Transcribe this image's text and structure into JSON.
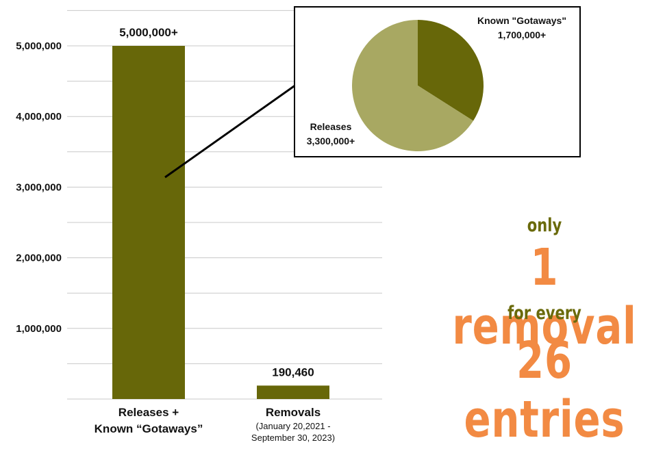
{
  "colors": {
    "bar": "#676709",
    "pie_known_gotaways": "#676709",
    "pie_releases": "#a8a862",
    "grid": "#c8c8c8",
    "callout_olive": "#6a6a0b",
    "callout_orange": "#f28a43"
  },
  "chart_data": [
    {
      "type": "bar",
      "categories": [
        "Releases + Known “Gotaways”",
        "Removals"
      ],
      "category_lines": [
        [
          "Releases +",
          "Known “Gotaways”"
        ],
        [
          "Removals",
          "(January 20,2021 -",
          "September 30, 2023)"
        ]
      ],
      "values": [
        5000000,
        190460
      ],
      "data_labels": [
        "5,000,000+",
        "190,460"
      ],
      "ylim": [
        0,
        5500000
      ],
      "yticks": [
        1000000,
        2000000,
        3000000,
        4000000,
        5000000
      ],
      "ytick_labels": [
        "1,000,000",
        "2,000,000",
        "3,000,000",
        "4,000,000",
        "5,000,000"
      ],
      "grid_step": 500000,
      "grid": true
    },
    {
      "type": "pie",
      "breakdown_of": "Releases + Known “Gotaways”",
      "slices": [
        {
          "label": "Known \"Gotaways\"",
          "value": 1700000,
          "value_label": "1,700,000+"
        },
        {
          "label": "Releases",
          "value": 3300000,
          "value_label": "3,300,000+"
        }
      ]
    }
  ],
  "callout": {
    "line1": "only",
    "line2": "1 removal",
    "line3": "for every",
    "line4": "26 entries"
  }
}
